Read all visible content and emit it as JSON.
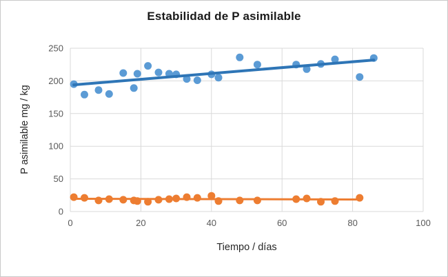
{
  "chart_data": {
    "type": "scatter",
    "title": "Estabilidad de P asimilable",
    "xlabel": "Tiempo / días",
    "ylabel": "P asimilable mg / kg",
    "xlim": [
      0,
      100
    ],
    "ylim": [
      0,
      250
    ],
    "xticks": [
      0,
      20,
      40,
      60,
      80,
      100
    ],
    "yticks": [
      0,
      50,
      100,
      150,
      200,
      250
    ],
    "grid": true,
    "legend": false,
    "grid_color": "#D9D9D9",
    "tick_color": "#595959",
    "series": [
      {
        "name": "serie-azul",
        "color": "#5B9BD5",
        "marker_radius": 5.5,
        "trendline_color": "#2E75B6",
        "trendline_width": 4,
        "trendline": {
          "x1": 1,
          "y1": 194,
          "x2": 86,
          "y2": 232
        },
        "x": [
          1,
          4,
          8,
          11,
          15,
          18,
          19,
          22,
          25,
          28,
          30,
          33,
          36,
          40,
          42,
          48,
          53,
          64,
          67,
          71,
          75,
          82,
          86
        ],
        "y": [
          195,
          179,
          186,
          180,
          212,
          189,
          211,
          223,
          213,
          211,
          210,
          203,
          201,
          210,
          205,
          236,
          225,
          225,
          218,
          226,
          233,
          206,
          235
        ]
      },
      {
        "name": "serie-naranja",
        "color": "#ED7D31",
        "marker_radius": 5.5,
        "trendline_color": "#ED7D31",
        "trendline_width": 3,
        "trendline": {
          "x1": 1,
          "y1": 19.5,
          "x2": 82,
          "y2": 18.5
        },
        "x": [
          1,
          4,
          8,
          11,
          15,
          18,
          19,
          22,
          25,
          28,
          30,
          33,
          36,
          40,
          42,
          48,
          53,
          64,
          67,
          71,
          75,
          82
        ],
        "y": [
          22,
          21,
          17,
          19,
          18,
          17,
          16,
          15,
          18,
          19,
          20,
          22,
          21,
          24,
          16,
          17,
          17,
          19,
          20,
          15,
          16,
          21
        ]
      }
    ]
  },
  "colors": {
    "background": "#FFFFFF",
    "border": "#C9C9C9",
    "title": "#1A1A1A",
    "axis_title": "#262626"
  }
}
